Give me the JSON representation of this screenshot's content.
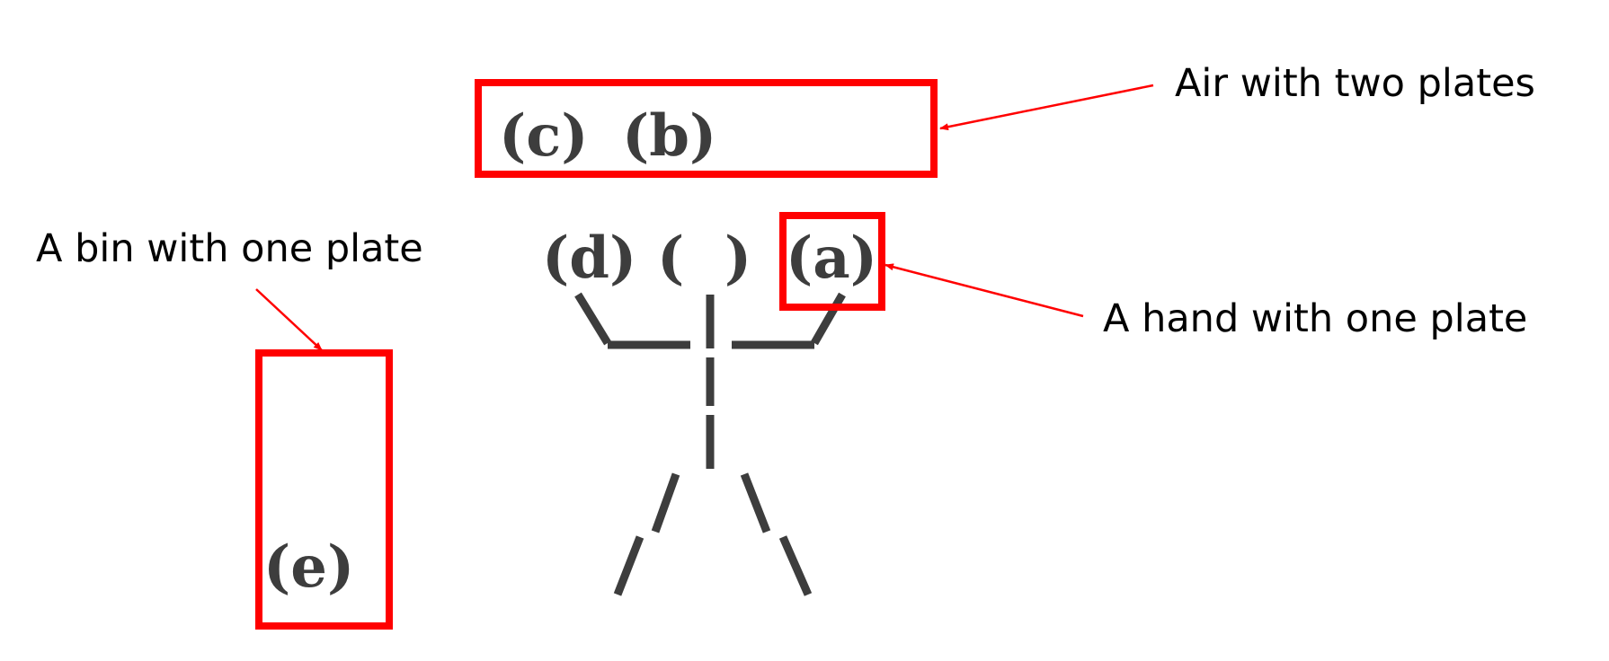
{
  "colors": {
    "highlight": "#ff0000",
    "figure": "#3d3d3d",
    "callout_text": "#000000",
    "background": "#ffffff"
  },
  "plates": {
    "c": "(c)",
    "b": "(b)",
    "d": "(d)",
    "empty": "(  )",
    "a": "(a)",
    "e": "(e)"
  },
  "callouts": {
    "air": "Air with two plates",
    "bin": "A bin with one plate",
    "hand": "A hand with one plate"
  }
}
